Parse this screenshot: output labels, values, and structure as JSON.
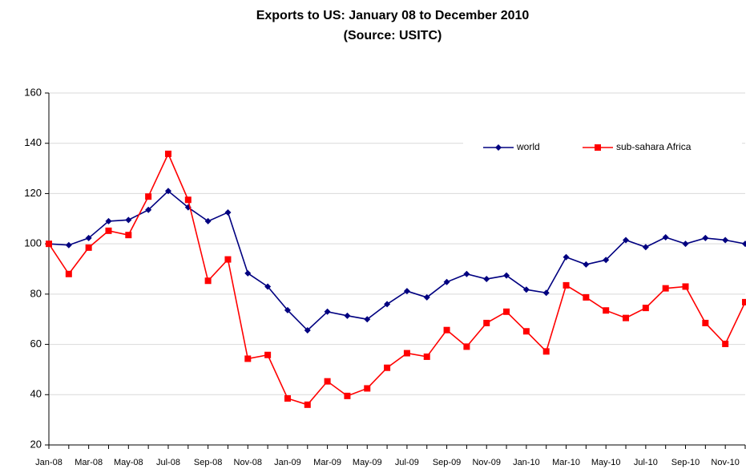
{
  "chart_data": {
    "type": "line",
    "title": "Exports to US: January 08 to December 2010",
    "subtitle": "(Source: USITC)",
    "categories": [
      "Jan-08",
      null,
      "Mar-08",
      null,
      "May-08",
      null,
      "Jul-08",
      null,
      "Sep-08",
      null,
      "Nov-08",
      null,
      "Jan-09",
      null,
      "Mar-09",
      null,
      "May-09",
      null,
      "Jul-09",
      null,
      "Sep-09",
      null,
      "Nov-09",
      null,
      "Jan-10",
      null,
      "Mar-10",
      null,
      "May-10",
      null,
      "Jul-10",
      null,
      "Sep-10",
      null,
      "Nov-10",
      null
    ],
    "series": [
      {
        "name": "world",
        "color": "#000080",
        "marker": "diamond",
        "values": [
          100,
          99.5,
          102.3,
          109,
          109.5,
          113.5,
          121,
          114.5,
          109,
          112.5,
          88.3,
          83,
          73.6,
          65.6,
          73,
          71.4,
          70,
          76,
          81.2,
          78.7,
          84.8,
          88,
          86,
          87.4,
          81.8,
          80.5,
          94.7,
          91.8,
          93.6,
          101.5,
          98.7,
          102.6,
          100,
          102.3,
          101.5,
          100
        ]
      },
      {
        "name": "sub-sahara Africa",
        "color": "#FF0000",
        "marker": "square",
        "values": [
          100,
          88,
          98.5,
          105.2,
          103.5,
          118.8,
          135.8,
          117.5,
          85.3,
          93.8,
          54.3,
          55.8,
          38.5,
          36,
          45.3,
          39.5,
          42.5,
          50.7,
          56.5,
          55.1,
          65.7,
          59.1,
          68.5,
          73,
          65.2,
          57.2,
          83.5,
          78.7,
          73.5,
          70.5,
          74.5,
          82.3,
          83,
          68.5,
          60.2,
          76.8
        ]
      }
    ],
    "ylim": [
      20,
      160
    ],
    "yticks": [
      20,
      40,
      60,
      80,
      100,
      120,
      140,
      160
    ],
    "grid": true,
    "legend": "upper right"
  }
}
